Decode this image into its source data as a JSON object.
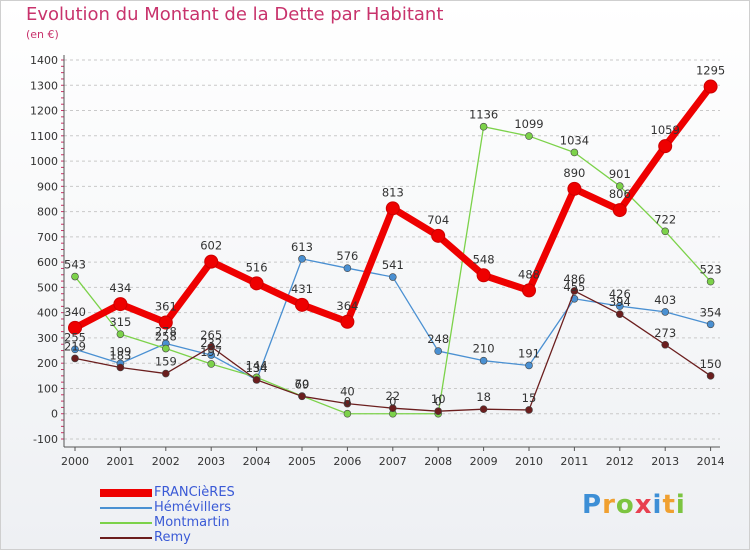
{
  "title": "Evolution du Montant de la Dette par Habitant",
  "subtitle": "(en €)",
  "logo": {
    "text": "Proxiti"
  },
  "chart_data": {
    "type": "line",
    "title": "Evolution du Montant de la Dette par Habitant",
    "subtitle": "(en €)",
    "categories": [
      "2000",
      "2001",
      "2002",
      "2003",
      "2004",
      "2005",
      "2006",
      "2007",
      "2008",
      "2009",
      "2010",
      "2011",
      "2012",
      "2013",
      "2014"
    ],
    "y_ticks": [
      -100,
      0,
      100,
      200,
      300,
      400,
      500,
      600,
      700,
      800,
      900,
      1000,
      1100,
      1200,
      1300,
      1400
    ],
    "ylim": [
      -100,
      1400
    ],
    "grid": "horizontal dashed",
    "legend_position": "bottom-left",
    "series": [
      {
        "name": "FRANCièRES",
        "color": "#ee0000",
        "values": [
          340,
          434,
          361,
          602,
          516,
          431,
          364,
          813,
          704,
          548,
          488,
          890,
          806,
          1059,
          1295
        ],
        "labels": [
          "340",
          "434",
          "361",
          "602",
          "516",
          "431",
          "364",
          "813",
          "704",
          "548",
          "488",
          "890",
          "806",
          "1059",
          "1295"
        ]
      },
      {
        "name": "Hémévillers",
        "color": "#4a90d2",
        "values": [
          255,
          199,
          278,
          232,
          134,
          613,
          576,
          541,
          248,
          210,
          191,
          455,
          426,
          403,
          354
        ],
        "labels": [
          "255",
          "199",
          "278",
          "232",
          "134",
          "613",
          "576",
          "541",
          "248",
          "210",
          "191",
          "455",
          "426",
          "403",
          "354"
        ]
      },
      {
        "name": "Montmartin",
        "color": "#7cd24a",
        "values": [
          543,
          315,
          258,
          197,
          144,
          70,
          0,
          0,
          0,
          1136,
          1099,
          1034,
          901,
          722,
          523
        ],
        "labels": [
          "543",
          "315",
          "258",
          "197",
          "144",
          "70",
          "0",
          "0",
          "0",
          "1136",
          "1099",
          "1034",
          "901",
          "722",
          "523"
        ]
      },
      {
        "name": "Remy",
        "color": "#6b1e1e",
        "values": [
          219,
          183,
          159,
          265,
          134,
          69,
          40,
          22,
          10,
          18,
          15,
          486,
          394,
          273,
          150
        ],
        "labels": [
          "219",
          "183",
          "159",
          "265",
          "134",
          "69",
          "40",
          "22",
          "10",
          "18",
          "15",
          "486",
          "394",
          "273",
          "150"
        ]
      }
    ]
  }
}
